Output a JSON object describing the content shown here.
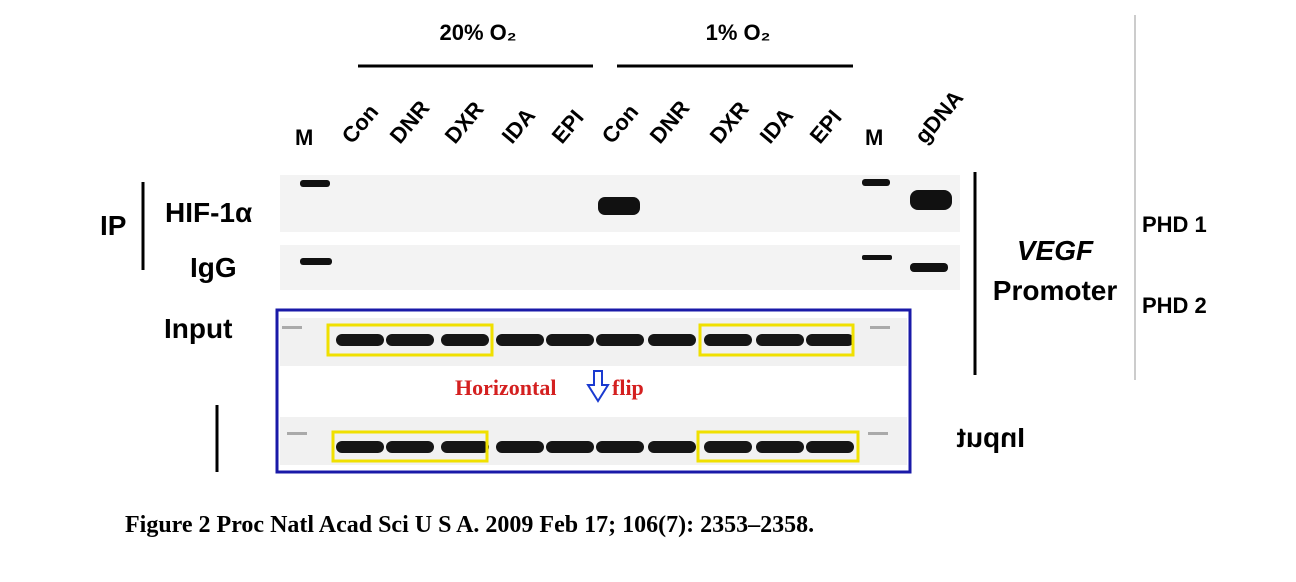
{
  "header": {
    "conditions": [
      "20% O₂",
      "1% O₂"
    ]
  },
  "lanes": [
    "M",
    "Con",
    "DNR",
    "DXR",
    "IDA",
    "EPI",
    "Con",
    "DNR",
    "DXR",
    "IDA",
    "EPI",
    "M",
    "gDNA"
  ],
  "rows": {
    "ip": "IP",
    "hif": "HIF-1α",
    "igg": "IgG",
    "input": "Input"
  },
  "right": {
    "gene": "VEGF",
    "region": "Promoter",
    "phd1": "PHD 1",
    "phd2": "PHD 2"
  },
  "annotation": {
    "word1": "Horizontal",
    "word2": "flip",
    "mirrored": "Input"
  },
  "caption": "Figure 2 Proc Natl Acad Sci U S A. 2009 Feb 17; 106(7): 2353–2358."
}
